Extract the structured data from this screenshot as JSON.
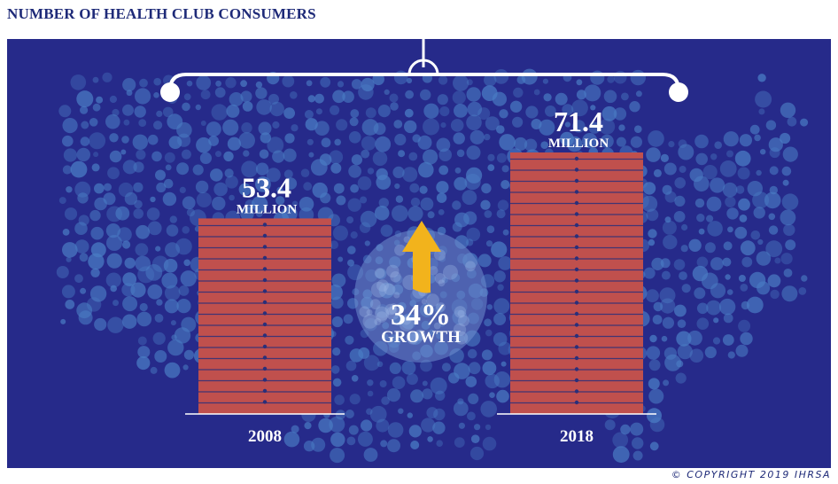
{
  "title": "NUMBER OF HEALTH CLUB CONSUMERS",
  "copyright": "© COPYRIGHT 2019 IHRSA",
  "colors": {
    "panel": "#262a8a",
    "bubble": "#4a7cc4",
    "bar": "#c0504d",
    "bar_line": "#2a2f7a",
    "arrow": "#f2b31c",
    "circle": "#6f8fd0"
  },
  "chart_data": {
    "type": "bar",
    "categories": [
      "2008",
      "2018"
    ],
    "values": [
      53.4,
      71.4
    ],
    "value_labels": [
      "53.4",
      "71.4"
    ],
    "unit_label": "MILLION",
    "growth": {
      "value": "34%",
      "label": "GROWTH",
      "icon": "up-arrow-icon"
    },
    "title": "NUMBER OF HEALTH CLUB CONSUMERS",
    "xlabel": "",
    "ylabel": "",
    "ylim": [
      0,
      71.4
    ],
    "grid": false,
    "legend": "none"
  }
}
